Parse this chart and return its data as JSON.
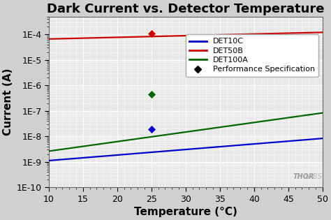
{
  "title": "Dark Current vs. Detector Temperature",
  "xlabel": "Temperature (°C)",
  "ylabel": "Current (A)",
  "xlim": [
    10,
    50
  ],
  "ylim_bottom_exp": -10,
  "ylim_top": 0.0005,
  "lines": {
    "DET10C": {
      "color": "#0000cc",
      "x0": 10,
      "x1": 50,
      "log_y0": -8.95,
      "log_y1": -8.08
    },
    "DET50B": {
      "color": "#cc0000",
      "x0": 10,
      "x1": 50,
      "log_y0": -4.18,
      "log_y1": -3.92
    },
    "DET100A": {
      "color": "#006600",
      "x0": 10,
      "x1": 50,
      "log_y0": -8.58,
      "log_y1": -7.08
    }
  },
  "spec_points": [
    {
      "x": 25,
      "log_y": -3.96,
      "color": "#cc0000"
    },
    {
      "x": 25,
      "log_y": -6.35,
      "color": "#006600"
    },
    {
      "x": 25,
      "log_y": -7.72,
      "color": "#0000cc"
    }
  ],
  "legend_labels": [
    "DET10C",
    "DET50B",
    "DET100A",
    "Performance Specification"
  ],
  "legend_line_colors": [
    "#0000cc",
    "#cc0000",
    "#006600"
  ],
  "legend_diamond_color": "#000000",
  "plot_bg_color": "#e8e8e8",
  "fig_bg_color": "#d0d0d0",
  "grid_major_color": "#ffffff",
  "grid_minor_color": "#ffffff",
  "thorlabs_text": "THOR",
  "thorlabs_text2": "LABS",
  "title_fontsize": 13,
  "axis_label_fontsize": 11,
  "tick_fontsize": 9,
  "legend_fontsize": 8
}
